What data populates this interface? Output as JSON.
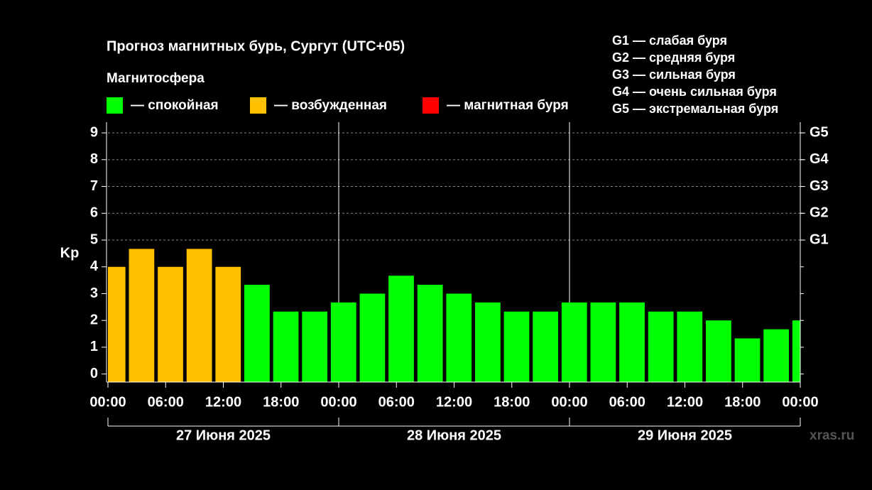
{
  "chart_data": {
    "type": "bar",
    "title": "Прогноз магнитных бурь, Сургут (UTC+05)",
    "legend_title": "Магнитосфера",
    "legend": [
      {
        "label": "— спокойная",
        "color": "#00ff00"
      },
      {
        "label": "— возбужденная",
        "color": "#ffc000"
      },
      {
        "label": "— магнитная буря",
        "color": "#ff0000"
      }
    ],
    "storm_scale": [
      "G1 — слабая буря",
      "G2 — средняя буря",
      "G3 — сильная буря",
      "G4 — очень сильная буря",
      "G5 — экстремальная буря"
    ],
    "ylabel": "Kp",
    "watermark": "xras.ru",
    "x": [
      0.5,
      3.5,
      6.5,
      9.5,
      12.5,
      15.5,
      18.5,
      21.5,
      24.5,
      27.5,
      30.5,
      33.5,
      36.5,
      39.5,
      42.5,
      45.5,
      48.5,
      51.5,
      54.5,
      57.5,
      60.5,
      63.5,
      66.5,
      69.5,
      72.5
    ],
    "bar_width": 3,
    "values": [
      4,
      4.67,
      4,
      4.67,
      4,
      3.33,
      2.33,
      2.33,
      2.67,
      3,
      3.67,
      3.33,
      3,
      2.67,
      2.33,
      2.33,
      2.67,
      2.67,
      2.67,
      2.33,
      2.33,
      2,
      1.33,
      1.67,
      2
    ],
    "colors": [
      "#ffc000",
      "#ffc000",
      "#ffc000",
      "#ffc000",
      "#ffc000",
      "#00ff00",
      "#00ff00",
      "#00ff00",
      "#00ff00",
      "#00ff00",
      "#00ff00",
      "#00ff00",
      "#00ff00",
      "#00ff00",
      "#00ff00",
      "#00ff00",
      "#00ff00",
      "#00ff00",
      "#00ff00",
      "#00ff00",
      "#00ff00",
      "#00ff00",
      "#00ff00",
      "#00ff00",
      "#00ff00"
    ],
    "xlim": [
      0,
      72
    ],
    "xticks": [
      {
        "value": 0,
        "label": "00:00"
      },
      {
        "value": 6,
        "label": "06:00"
      },
      {
        "value": 12,
        "label": "12:00"
      },
      {
        "value": 18,
        "label": "18:00"
      },
      {
        "value": 24,
        "label": "00:00"
      },
      {
        "value": 30,
        "label": "06:00"
      },
      {
        "value": 36,
        "label": "12:00"
      },
      {
        "value": 42,
        "label": "18:00"
      },
      {
        "value": 48,
        "label": "00:00"
      },
      {
        "value": 54,
        "label": "06:00"
      },
      {
        "value": 60,
        "label": "12:00"
      },
      {
        "value": 66,
        "label": "18:00"
      },
      {
        "value": 72,
        "label": "00:00"
      }
    ],
    "days": [
      {
        "label": "27 Июня 2025",
        "start": 0,
        "end": 24
      },
      {
        "label": "28 Июня 2025",
        "start": 24,
        "end": 48
      },
      {
        "label": "29 Июня 2025",
        "start": 48,
        "end": 72
      }
    ],
    "ylim": [
      -0.3,
      9.4
    ],
    "yticks": [
      0,
      1,
      2,
      3,
      4,
      5,
      6,
      7,
      8,
      9
    ],
    "y2ticks": [
      {
        "value": 5,
        "label": "G1"
      },
      {
        "value": 6,
        "label": "G2"
      },
      {
        "value": 7,
        "label": "G3"
      },
      {
        "value": 8,
        "label": "G4"
      },
      {
        "value": 9,
        "label": "G5"
      }
    ],
    "grid": "y2"
  }
}
